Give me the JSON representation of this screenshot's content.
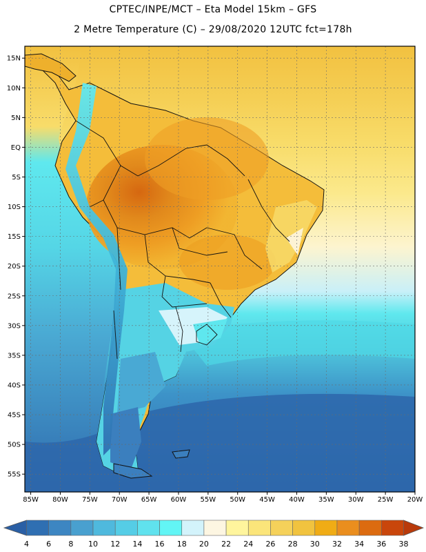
{
  "header": {
    "line1": "CPTEC/INPE/MCT –  Eta Model 15km – GFS",
    "line2": "2 Metre Temperature (C) – 29/08/2020 12UTC fct=178h"
  },
  "map": {
    "lat_labels": [
      "15N",
      "10N",
      "5N",
      "EQ",
      "5S",
      "10S",
      "15S",
      "20S",
      "25S",
      "30S",
      "35S",
      "40S",
      "45S",
      "50S",
      "55S"
    ],
    "lat_values": [
      15,
      10,
      5,
      0,
      -5,
      -10,
      -15,
      -20,
      -25,
      -30,
      -35,
      -40,
      -45,
      -50,
      -55
    ],
    "lon_labels": [
      "85W",
      "80W",
      "75W",
      "70W",
      "65W",
      "60W",
      "55W",
      "50W",
      "45W",
      "40W",
      "35W",
      "30W",
      "25W",
      "20W"
    ],
    "lon_values": [
      -85,
      -80,
      -75,
      -70,
      -65,
      -60,
      -55,
      -50,
      -45,
      -40,
      -35,
      -30,
      -25,
      -20
    ],
    "lat_range": [
      -58,
      17
    ],
    "lon_range": [
      -86,
      -20
    ]
  },
  "colorbar": {
    "ticks": [
      "4",
      "6",
      "8",
      "10",
      "12",
      "14",
      "16",
      "18",
      "20",
      "22",
      "24",
      "26",
      "28",
      "30",
      "32",
      "34",
      "36",
      "38"
    ],
    "colors": [
      "#2f6fb2",
      "#3d86c2",
      "#49a0cf",
      "#4fb9dd",
      "#55cde6",
      "#60e2ee",
      "#62f5f5",
      "#d3f3fb",
      "#fdf6e2",
      "#fff59d",
      "#fbe57a",
      "#f5d15a",
      "#f1c33f",
      "#f0ac15",
      "#ea8e1e",
      "#dc6b10",
      "#c9460b"
    ],
    "below_color": "#2a5fa5",
    "above_color": "#b93a0a"
  }
}
